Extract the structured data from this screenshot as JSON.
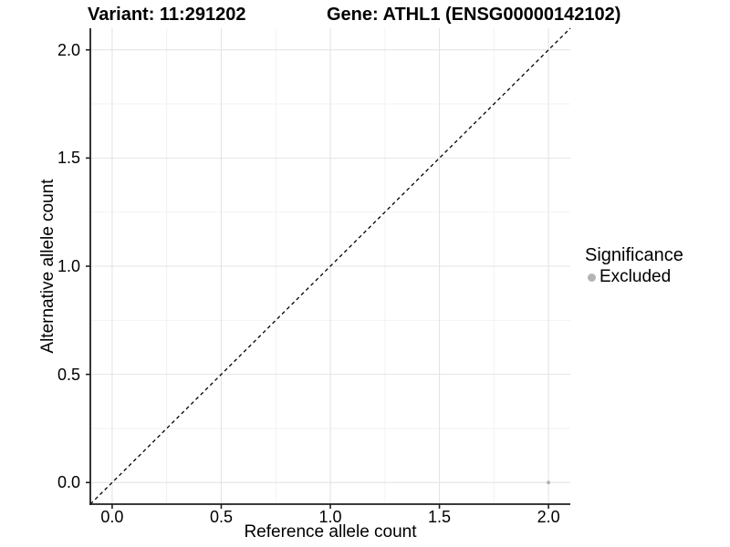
{
  "titles": {
    "variant": "Variant: 11:291202",
    "gene": "Gene: ATHL1 (ENSG00000142102)"
  },
  "axes": {
    "x": {
      "label": "Reference allele count",
      "tick_labels": [
        "0.0",
        "0.5",
        "1.0",
        "1.5",
        "2.0"
      ]
    },
    "y": {
      "label": "Alternative allele count",
      "tick_labels": [
        "0.0",
        "0.5",
        "1.0",
        "1.5",
        "2.0"
      ]
    }
  },
  "legend": {
    "title": "Significance",
    "items": [
      {
        "label": "Excluded",
        "color": "#b4b4b4"
      }
    ]
  },
  "colors": {
    "background": "#ffffff",
    "grid_major": "#e4e4e4",
    "grid_minor": "#f2f2f2",
    "axis_line": "#1f1f1f",
    "tick_mark": "#1f1f1f",
    "reference_line": "#000000",
    "point": "#b4b4b4",
    "text": "#000000"
  },
  "chart_data": {
    "type": "scatter",
    "title": "Variant: 11:291202",
    "title_right": "Gene: ATHL1 (ENSG00000142102)",
    "xlabel": "Reference allele count",
    "ylabel": "Alternative allele count",
    "xlim": [
      -0.1,
      2.1
    ],
    "ylim": [
      -0.1,
      2.1
    ],
    "x_ticks": [
      0,
      0.5,
      1,
      1.5,
      2
    ],
    "y_ticks": [
      0,
      0.5,
      1,
      1.5,
      2
    ],
    "x_minor_ticks": [
      0.25,
      0.75,
      1.25,
      1.75
    ],
    "y_minor_ticks": [
      0.25,
      0.75,
      1.25,
      1.75
    ],
    "grid": "major+minor",
    "legend_position": "right",
    "series": [
      {
        "name": "Excluded",
        "color": "#b4b4b4",
        "points": [
          {
            "x": 2.0,
            "y": 0.0
          }
        ]
      }
    ],
    "reference_line": {
      "kind": "identity y=x",
      "from": [
        -0.1,
        -0.1
      ],
      "to": [
        2.1,
        2.1
      ],
      "style": "dashed",
      "color": "#000000"
    }
  }
}
